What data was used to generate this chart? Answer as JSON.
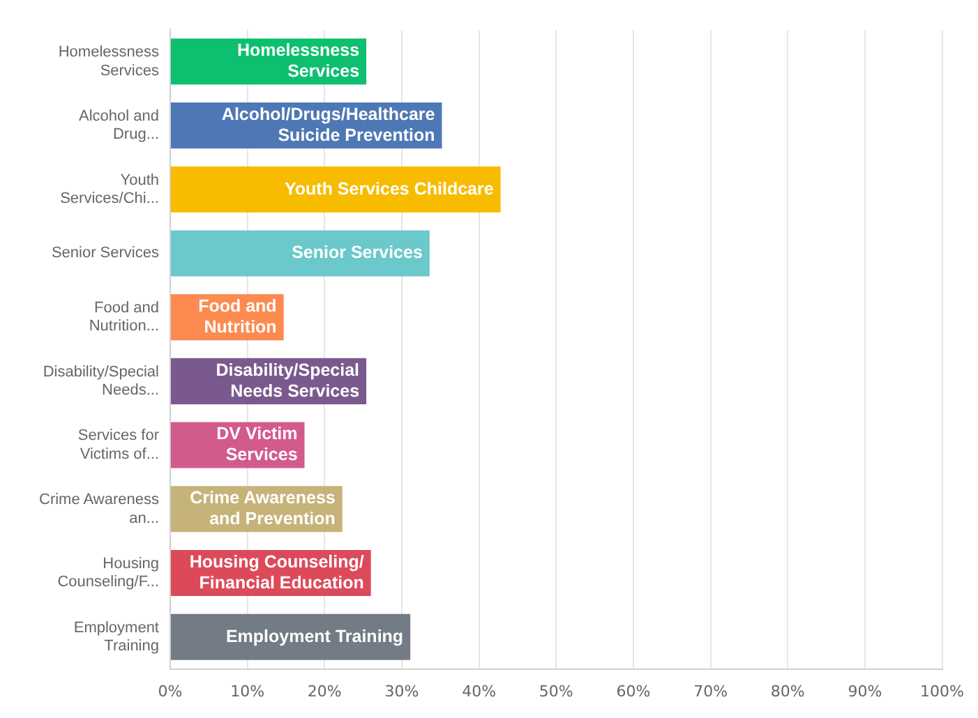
{
  "chart_data": {
    "type": "bar",
    "orientation": "horizontal",
    "categories": [
      "Homelessness Services",
      "Alcohol and Drug...",
      "Youth Services/Chi...",
      "Senior Services",
      "Food and Nutrition...",
      "Disability/Special Needs...",
      "Services for Victims of...",
      "Crime Awareness an...",
      "Housing Counseling/F...",
      "Employment Training"
    ],
    "values": [
      25.4,
      35.2,
      42.8,
      33.6,
      14.7,
      25.4,
      17.4,
      22.3,
      26.0,
      31.1
    ],
    "colors": [
      "#0dbf6f",
      "#4e78b5",
      "#f7bc00",
      "#6bc8cb",
      "#fd8a4f",
      "#7a5a8e",
      "#d35a8d",
      "#c6b37a",
      "#dc4a5a",
      "#737b84"
    ],
    "value_labels": [
      "Homelessness Services",
      "Alcohol/Drugs/Healthcare Suicide Prevention",
      "Youth Services Childcare",
      "Senior Services",
      "Food and Nutrition",
      "Disability/Special Needs Services",
      "DV Victim Services",
      "Crime Awareness and Prevention",
      "Housing Counseling/ Financial Education",
      "Employment Training"
    ],
    "xlim": [
      0,
      100
    ],
    "xticks": [
      {
        "value": 0,
        "label": "0%"
      },
      {
        "value": 10,
        "label": "10%"
      },
      {
        "value": 20,
        "label": "20%"
      },
      {
        "value": 30,
        "label": "30%"
      },
      {
        "value": 40,
        "label": "40%"
      },
      {
        "value": 50,
        "label": "50%"
      },
      {
        "value": 60,
        "label": "60%"
      },
      {
        "value": 70,
        "label": "70%"
      },
      {
        "value": 80,
        "label": "80%"
      },
      {
        "value": 90,
        "label": "90%"
      },
      {
        "value": 100,
        "label": "100%"
      }
    ],
    "grid": "x",
    "legend": false
  }
}
